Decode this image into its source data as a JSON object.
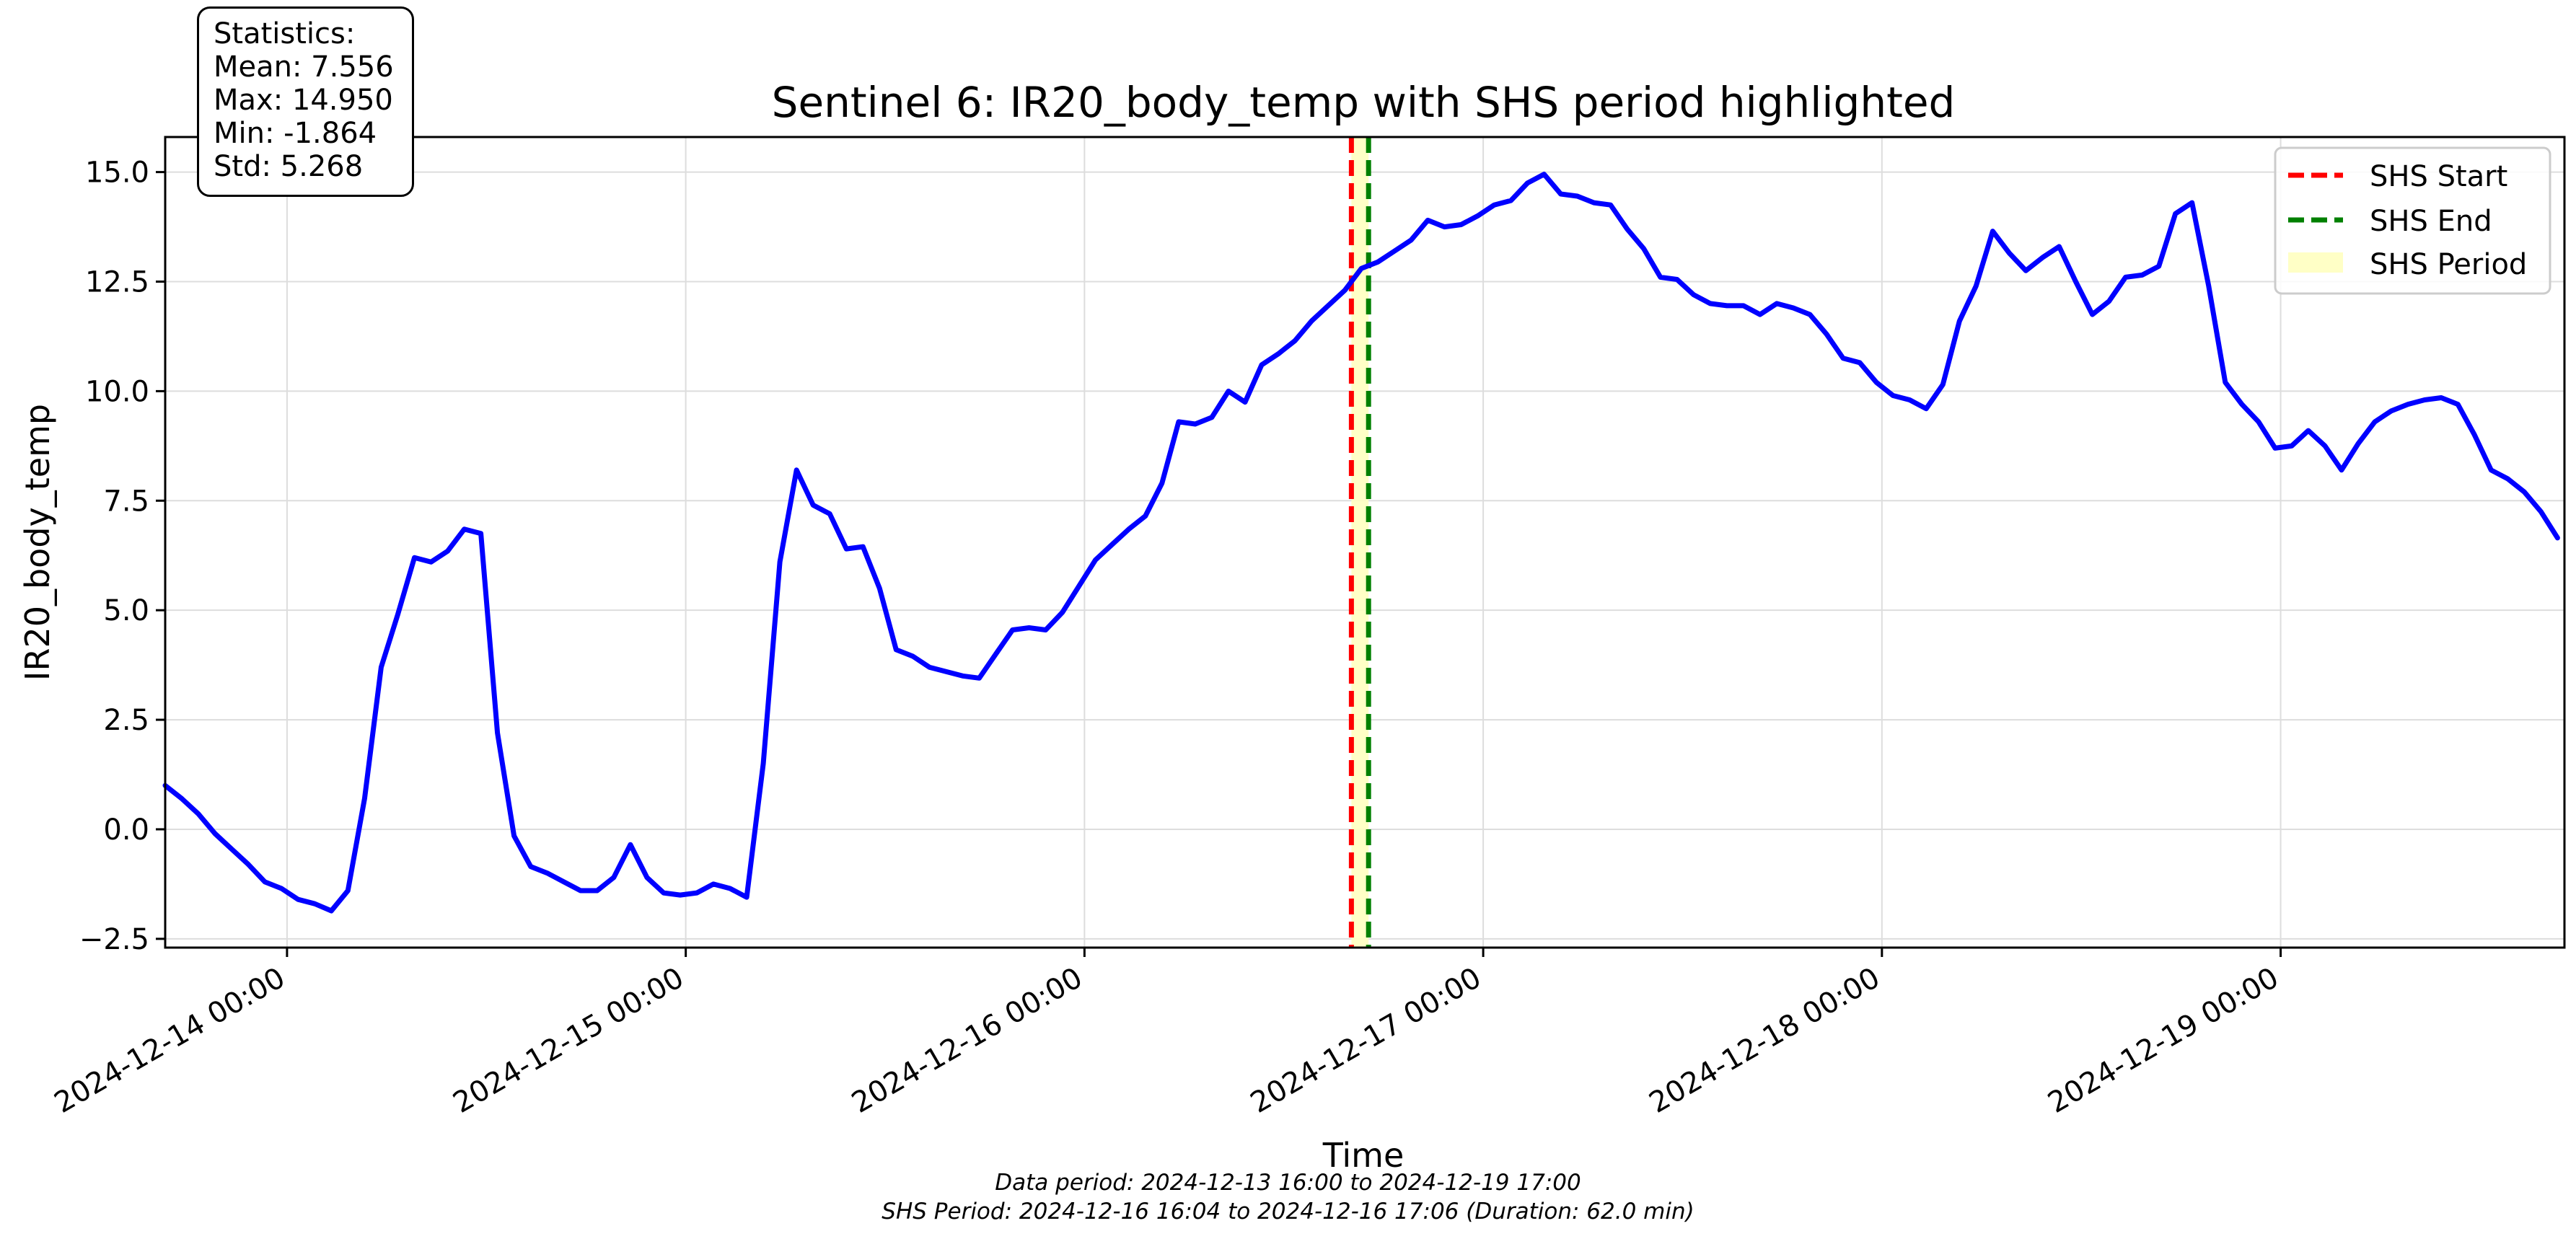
{
  "chart_data": {
    "type": "line",
    "title": "Sentinel 6: IR20_body_temp with SHS period highlighted",
    "xlabel": "Time",
    "ylabel": "IR20_body_temp",
    "x_range": [
      "2024-12-13 16:40",
      "2024-12-19 17:05"
    ],
    "ylim": [
      -2.7,
      15.8
    ],
    "y_ticks": [
      -2.5,
      0.0,
      2.5,
      5.0,
      7.5,
      10.0,
      12.5,
      15.0
    ],
    "y_tick_labels": [
      "−2.5",
      "0.0",
      "2.5",
      "5.0",
      "7.5",
      "10.0",
      "12.5",
      "15.0"
    ],
    "x_ticks": [
      "2024-12-14 00:00",
      "2024-12-15 00:00",
      "2024-12-16 00:00",
      "2024-12-17 00:00",
      "2024-12-18 00:00",
      "2024-12-19 00:00"
    ],
    "x_tick_labels": [
      "2024-12-14 00:00",
      "2024-12-15 00:00",
      "2024-12-16 00:00",
      "2024-12-17 00:00",
      "2024-12-18 00:00",
      "2024-12-19 00:00"
    ],
    "grid": true,
    "legend_position": "top-right",
    "series": [
      {
        "name": "IR20_body_temp",
        "color": "#0000ff",
        "points": [
          [
            "2024-12-13 16:40",
            1.0
          ],
          [
            "2024-12-13 17:40",
            0.7
          ],
          [
            "2024-12-13 18:40",
            0.35
          ],
          [
            "2024-12-13 19:40",
            -0.1
          ],
          [
            "2024-12-13 20:40",
            -0.45
          ],
          [
            "2024-12-13 21:40",
            -0.8
          ],
          [
            "2024-12-13 22:40",
            -1.2
          ],
          [
            "2024-12-13 23:40",
            -1.35
          ],
          [
            "2024-12-14 00:40",
            -1.6
          ],
          [
            "2024-12-14 01:40",
            -1.7
          ],
          [
            "2024-12-14 02:40",
            -1.86
          ],
          [
            "2024-12-14 03:40",
            -1.4
          ],
          [
            "2024-12-14 04:40",
            0.7
          ],
          [
            "2024-12-14 05:40",
            3.7
          ],
          [
            "2024-12-14 06:40",
            4.9
          ],
          [
            "2024-12-14 07:40",
            6.2
          ],
          [
            "2024-12-14 08:40",
            6.1
          ],
          [
            "2024-12-14 09:40",
            6.35
          ],
          [
            "2024-12-14 10:40",
            6.85
          ],
          [
            "2024-12-14 11:40",
            6.75
          ],
          [
            "2024-12-14 12:40",
            2.2
          ],
          [
            "2024-12-14 13:40",
            -0.15
          ],
          [
            "2024-12-14 14:40",
            -0.85
          ],
          [
            "2024-12-14 15:40",
            -1.0
          ],
          [
            "2024-12-14 16:40",
            -1.2
          ],
          [
            "2024-12-14 17:40",
            -1.4
          ],
          [
            "2024-12-14 18:40",
            -1.4
          ],
          [
            "2024-12-14 19:40",
            -1.1
          ],
          [
            "2024-12-14 20:40",
            -0.35
          ],
          [
            "2024-12-14 21:40",
            -1.1
          ],
          [
            "2024-12-14 22:40",
            -1.45
          ],
          [
            "2024-12-14 23:40",
            -1.5
          ],
          [
            "2024-12-15 00:40",
            -1.45
          ],
          [
            "2024-12-15 01:40",
            -1.25
          ],
          [
            "2024-12-15 02:40",
            -1.35
          ],
          [
            "2024-12-15 03:40",
            -1.55
          ],
          [
            "2024-12-15 04:40",
            1.5
          ],
          [
            "2024-12-15 05:40",
            6.1
          ],
          [
            "2024-12-15 06:40",
            8.2
          ],
          [
            "2024-12-15 07:40",
            7.4
          ],
          [
            "2024-12-15 08:40",
            7.2
          ],
          [
            "2024-12-15 09:40",
            6.4
          ],
          [
            "2024-12-15 10:40",
            6.45
          ],
          [
            "2024-12-15 11:40",
            5.5
          ],
          [
            "2024-12-15 12:40",
            4.1
          ],
          [
            "2024-12-15 13:40",
            3.95
          ],
          [
            "2024-12-15 14:40",
            3.7
          ],
          [
            "2024-12-15 15:40",
            3.6
          ],
          [
            "2024-12-15 16:40",
            3.5
          ],
          [
            "2024-12-15 17:40",
            3.45
          ],
          [
            "2024-12-15 18:40",
            4.0
          ],
          [
            "2024-12-15 19:40",
            4.55
          ],
          [
            "2024-12-15 20:40",
            4.6
          ],
          [
            "2024-12-15 21:40",
            4.55
          ],
          [
            "2024-12-15 22:40",
            4.95
          ],
          [
            "2024-12-15 23:40",
            5.55
          ],
          [
            "2024-12-16 00:40",
            6.15
          ],
          [
            "2024-12-16 01:40",
            6.5
          ],
          [
            "2024-12-16 02:40",
            6.85
          ],
          [
            "2024-12-16 03:40",
            7.15
          ],
          [
            "2024-12-16 04:40",
            7.9
          ],
          [
            "2024-12-16 05:40",
            9.3
          ],
          [
            "2024-12-16 06:40",
            9.25
          ],
          [
            "2024-12-16 07:40",
            9.4
          ],
          [
            "2024-12-16 08:40",
            10.0
          ],
          [
            "2024-12-16 09:40",
            9.75
          ],
          [
            "2024-12-16 10:40",
            10.6
          ],
          [
            "2024-12-16 11:40",
            10.85
          ],
          [
            "2024-12-16 12:40",
            11.15
          ],
          [
            "2024-12-16 13:40",
            11.6
          ],
          [
            "2024-12-16 14:40",
            11.95
          ],
          [
            "2024-12-16 15:40",
            12.3
          ],
          [
            "2024-12-16 16:40",
            12.8
          ],
          [
            "2024-12-16 17:40",
            12.95
          ],
          [
            "2024-12-16 18:40",
            13.2
          ],
          [
            "2024-12-16 19:40",
            13.45
          ],
          [
            "2024-12-16 20:40",
            13.9
          ],
          [
            "2024-12-16 21:40",
            13.75
          ],
          [
            "2024-12-16 22:40",
            13.8
          ],
          [
            "2024-12-16 23:40",
            14.0
          ],
          [
            "2024-12-17 00:40",
            14.25
          ],
          [
            "2024-12-17 01:40",
            14.35
          ],
          [
            "2024-12-17 02:40",
            14.75
          ],
          [
            "2024-12-17 03:40",
            14.95
          ],
          [
            "2024-12-17 04:40",
            14.5
          ],
          [
            "2024-12-17 05:40",
            14.45
          ],
          [
            "2024-12-17 06:40",
            14.3
          ],
          [
            "2024-12-17 07:40",
            14.25
          ],
          [
            "2024-12-17 08:40",
            13.7
          ],
          [
            "2024-12-17 09:40",
            13.25
          ],
          [
            "2024-12-17 10:40",
            12.6
          ],
          [
            "2024-12-17 11:40",
            12.55
          ],
          [
            "2024-12-17 12:40",
            12.2
          ],
          [
            "2024-12-17 13:40",
            12.0
          ],
          [
            "2024-12-17 14:40",
            11.95
          ],
          [
            "2024-12-17 15:40",
            11.95
          ],
          [
            "2024-12-17 16:40",
            11.75
          ],
          [
            "2024-12-17 17:40",
            12.0
          ],
          [
            "2024-12-17 18:40",
            11.9
          ],
          [
            "2024-12-17 19:40",
            11.75
          ],
          [
            "2024-12-17 20:40",
            11.3
          ],
          [
            "2024-12-17 21:40",
            10.75
          ],
          [
            "2024-12-17 22:40",
            10.65
          ],
          [
            "2024-12-17 23:40",
            10.2
          ],
          [
            "2024-12-18 00:40",
            9.9
          ],
          [
            "2024-12-18 01:40",
            9.8
          ],
          [
            "2024-12-18 02:40",
            9.6
          ],
          [
            "2024-12-18 03:40",
            10.15
          ],
          [
            "2024-12-18 04:40",
            11.6
          ],
          [
            "2024-12-18 05:40",
            12.4
          ],
          [
            "2024-12-18 06:40",
            13.65
          ],
          [
            "2024-12-18 07:40",
            13.15
          ],
          [
            "2024-12-18 08:40",
            12.75
          ],
          [
            "2024-12-18 09:40",
            13.05
          ],
          [
            "2024-12-18 10:40",
            13.3
          ],
          [
            "2024-12-18 11:40",
            12.5
          ],
          [
            "2024-12-18 12:40",
            11.75
          ],
          [
            "2024-12-18 13:40",
            12.05
          ],
          [
            "2024-12-18 14:40",
            12.6
          ],
          [
            "2024-12-18 15:40",
            12.65
          ],
          [
            "2024-12-18 16:40",
            12.85
          ],
          [
            "2024-12-18 17:40",
            14.05
          ],
          [
            "2024-12-18 18:40",
            14.3
          ],
          [
            "2024-12-18 19:40",
            12.4
          ],
          [
            "2024-12-18 20:40",
            10.2
          ],
          [
            "2024-12-18 21:40",
            9.7
          ],
          [
            "2024-12-18 22:40",
            9.3
          ],
          [
            "2024-12-18 23:40",
            8.7
          ],
          [
            "2024-12-19 00:40",
            8.75
          ],
          [
            "2024-12-19 01:40",
            9.1
          ],
          [
            "2024-12-19 02:40",
            8.75
          ],
          [
            "2024-12-19 03:40",
            8.2
          ],
          [
            "2024-12-19 04:40",
            8.8
          ],
          [
            "2024-12-19 05:40",
            9.3
          ],
          [
            "2024-12-19 06:40",
            9.55
          ],
          [
            "2024-12-19 07:40",
            9.7
          ],
          [
            "2024-12-19 08:40",
            9.8
          ],
          [
            "2024-12-19 09:40",
            9.85
          ],
          [
            "2024-12-19 10:40",
            9.7
          ],
          [
            "2024-12-19 11:40",
            9.0
          ],
          [
            "2024-12-19 12:40",
            8.2
          ],
          [
            "2024-12-19 13:40",
            8.0
          ],
          [
            "2024-12-19 14:40",
            7.7
          ],
          [
            "2024-12-19 15:40",
            7.25
          ],
          [
            "2024-12-19 16:40",
            6.65
          ]
        ]
      }
    ],
    "shs_period": {
      "start": "2024-12-16 16:04",
      "end": "2024-12-16 17:06",
      "start_color": "#ff0000",
      "end_color": "#008000",
      "fill_color": "#ffffc0"
    },
    "legend": [
      {
        "label": "SHS Start",
        "style": "dashed",
        "color": "#ff0000"
      },
      {
        "label": "SHS End",
        "style": "dashed",
        "color": "#008000"
      },
      {
        "label": "SHS Period",
        "style": "patch",
        "color": "#ffffc0"
      }
    ]
  },
  "stats": {
    "heading": "Statistics:",
    "mean": "Mean: 7.556",
    "max": "Max: 14.950",
    "min": "Min: -1.864",
    "std": "Std: 5.268"
  },
  "footer": {
    "data_period": "Data period: 2024-12-13 16:00 to 2024-12-19 17:00",
    "shs_period": "SHS Period: 2024-12-16 16:04 to 2024-12-16 17:06 (Duration: 62.0 min)"
  }
}
